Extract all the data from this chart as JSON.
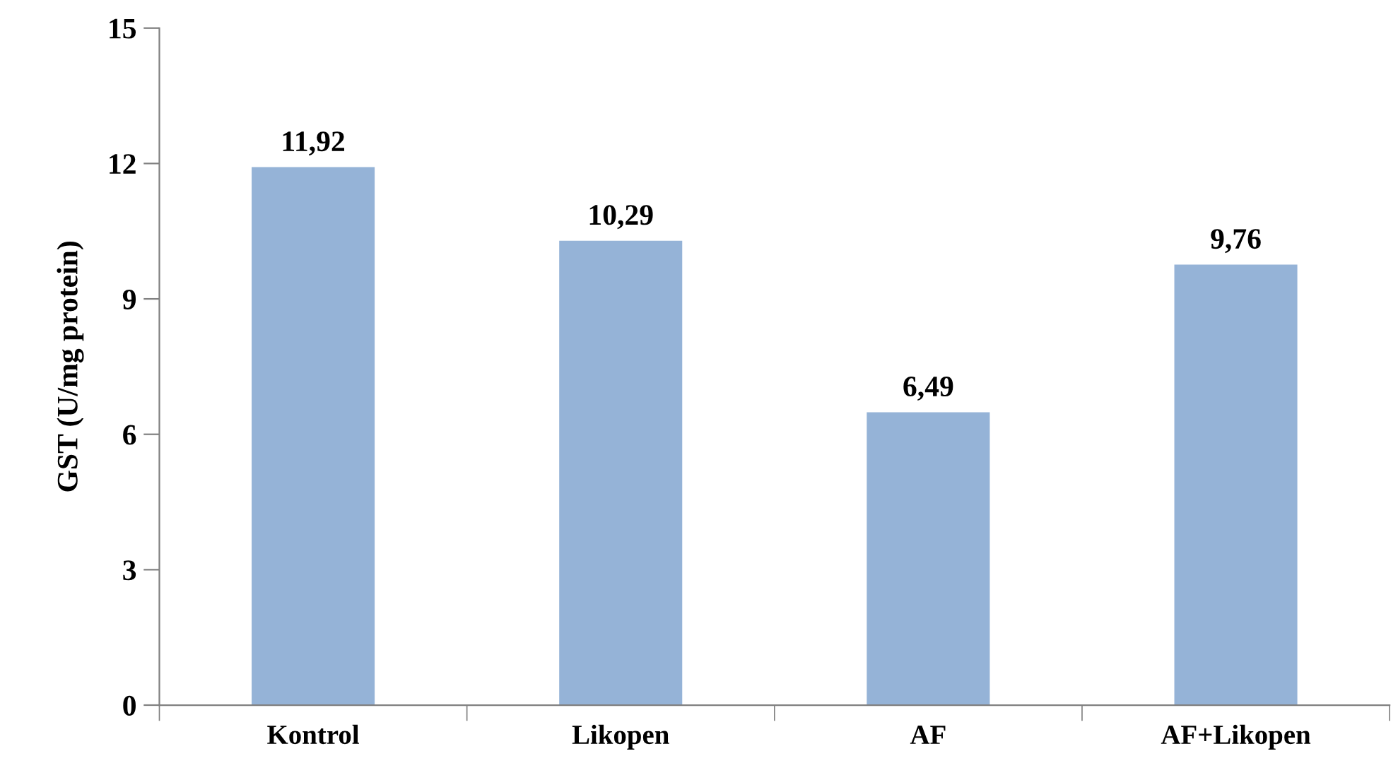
{
  "chart_data": {
    "type": "bar",
    "ylabel": "GST (U/mg protein)",
    "categories": [
      "Kontrol",
      "Likopen",
      "AF",
      "AF+Likopen"
    ],
    "values": [
      11.92,
      10.29,
      6.49,
      9.76
    ],
    "value_labels": [
      "11,92",
      "10,29",
      "6,49",
      "9,76"
    ],
    "color": "#95b3d7",
    "ylim": [
      0,
      15
    ],
    "yticks": [
      0,
      3,
      6,
      9,
      12,
      15
    ],
    "grid": false,
    "legend": false
  }
}
